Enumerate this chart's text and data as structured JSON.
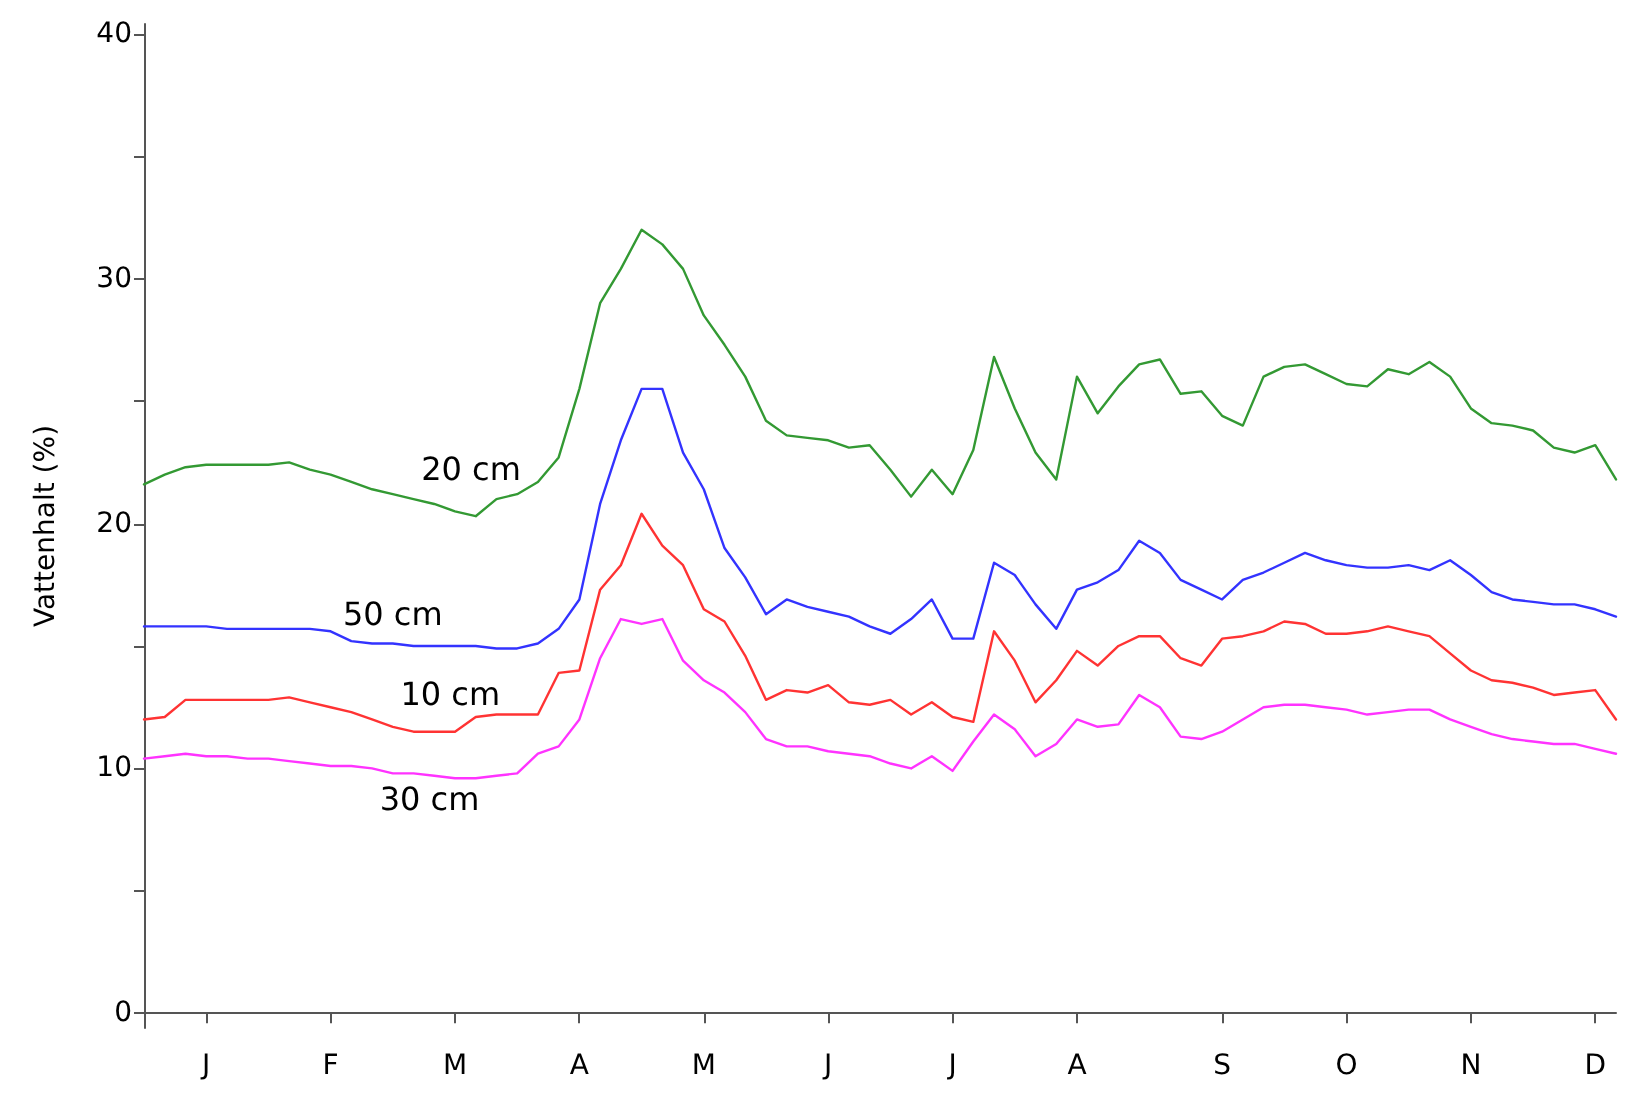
{
  "chart_data": {
    "type": "line",
    "ylabel": "Vattenhalt (%)",
    "legend": false,
    "grid": false,
    "marker": "none",
    "line_style": "solid",
    "categories": [
      null,
      null,
      null,
      "J",
      null,
      null,
      null,
      null,
      null,
      "F",
      null,
      null,
      null,
      null,
      null,
      "M",
      null,
      null,
      null,
      null,
      null,
      "A",
      null,
      null,
      null,
      null,
      null,
      "M",
      null,
      null,
      null,
      null,
      null,
      "J",
      null,
      null,
      null,
      null,
      null,
      "J",
      null,
      null,
      null,
      null,
      null,
      "A",
      null,
      null,
      null,
      null,
      null,
      null,
      "S",
      null,
      null,
      null,
      null,
      null,
      "O",
      null,
      null,
      null,
      null,
      null,
      "N",
      null,
      null,
      null,
      null,
      null,
      "D",
      null
    ],
    "ylim": [
      -0.6,
      40.4
    ],
    "yticks": [
      0,
      {
        "value": 5,
        "label": null
      },
      10,
      {
        "value": 15,
        "label": null
      },
      20,
      {
        "value": 25,
        "label": null
      },
      30,
      {
        "value": 35,
        "label": null
      },
      40
    ],
    "series": [
      {
        "name": "20 cm",
        "color": "#339933",
        "values": [
          21.6,
          22.0,
          22.3,
          22.4,
          22.4,
          22.4,
          22.4,
          22.5,
          22.2,
          22.0,
          21.7,
          21.4,
          21.2,
          21.0,
          20.8,
          20.5,
          20.3,
          21.0,
          21.2,
          21.7,
          22.7,
          25.5,
          29.0,
          30.4,
          32.0,
          31.4,
          30.4,
          28.5,
          27.3,
          26.0,
          24.2,
          23.6,
          23.5,
          23.4,
          23.1,
          23.2,
          22.2,
          21.1,
          22.2,
          21.2,
          23.0,
          26.8,
          24.7,
          22.9,
          21.8,
          26.0,
          24.5,
          25.6,
          26.5,
          26.7,
          25.3,
          25.4,
          24.4,
          24.0,
          26.0,
          26.4,
          26.5,
          26.1,
          25.7,
          25.6,
          26.3,
          26.1,
          26.6,
          26.0,
          24.7,
          24.1,
          24.0,
          23.8,
          23.1,
          22.9,
          23.2,
          21.8
        ]
      },
      {
        "name": "50 cm",
        "color": "#3333ff",
        "values": [
          15.8,
          15.8,
          15.8,
          15.8,
          15.7,
          15.7,
          15.7,
          15.7,
          15.7,
          15.6,
          15.2,
          15.1,
          15.1,
          15.0,
          15.0,
          15.0,
          15.0,
          14.9,
          14.9,
          15.1,
          15.7,
          16.9,
          20.8,
          23.4,
          25.5,
          25.5,
          22.9,
          21.4,
          19.0,
          17.8,
          16.3,
          16.9,
          16.6,
          16.4,
          16.2,
          15.8,
          15.5,
          16.1,
          16.9,
          15.3,
          15.3,
          18.4,
          17.9,
          16.7,
          15.7,
          17.3,
          17.6,
          18.1,
          19.3,
          18.8,
          17.7,
          17.3,
          16.9,
          17.7,
          18.0,
          18.4,
          18.8,
          18.5,
          18.3,
          18.2,
          18.2,
          18.3,
          18.1,
          18.5,
          17.9,
          17.2,
          16.9,
          16.8,
          16.7,
          16.7,
          16.5,
          16.2
        ]
      },
      {
        "name": "10 cm",
        "color": "#ff3333",
        "values": [
          12.0,
          12.1,
          12.8,
          12.8,
          12.8,
          12.8,
          12.8,
          12.9,
          12.7,
          12.5,
          12.3,
          12.0,
          11.7,
          11.5,
          11.5,
          11.5,
          12.1,
          12.2,
          12.2,
          12.2,
          13.9,
          14.0,
          17.3,
          18.3,
          20.4,
          19.1,
          18.3,
          16.5,
          16.0,
          14.6,
          12.8,
          13.2,
          13.1,
          13.4,
          12.7,
          12.6,
          12.8,
          12.2,
          12.7,
          12.1,
          11.9,
          15.6,
          14.4,
          12.7,
          13.6,
          14.8,
          14.2,
          15.0,
          15.4,
          15.4,
          14.5,
          14.2,
          15.3,
          15.4,
          15.6,
          16.0,
          15.9,
          15.5,
          15.5,
          15.6,
          15.8,
          15.6,
          15.4,
          14.7,
          14.0,
          13.6,
          13.5,
          13.3,
          13.0,
          13.1,
          13.2,
          12.0
        ]
      },
      {
        "name": "30 cm",
        "color": "#ff33ff",
        "values": [
          10.4,
          10.5,
          10.6,
          10.5,
          10.5,
          10.4,
          10.4,
          10.3,
          10.2,
          10.1,
          10.1,
          10.0,
          9.8,
          9.8,
          9.7,
          9.6,
          9.6,
          9.7,
          9.8,
          10.6,
          10.9,
          12.0,
          14.5,
          16.1,
          15.9,
          16.1,
          14.4,
          13.6,
          13.1,
          12.3,
          11.2,
          10.9,
          10.9,
          10.7,
          10.6,
          10.5,
          10.2,
          10.0,
          10.5,
          9.9,
          11.1,
          12.2,
          11.6,
          10.5,
          11.0,
          12.0,
          11.7,
          11.8,
          13.0,
          12.5,
          11.3,
          11.2,
          11.5,
          12.0,
          12.5,
          12.6,
          12.6,
          12.5,
          12.4,
          12.2,
          12.3,
          12.4,
          12.4,
          12.0,
          11.7,
          11.4,
          11.2,
          11.1,
          11.0,
          11.0,
          10.8,
          10.6
        ]
      }
    ]
  }
}
